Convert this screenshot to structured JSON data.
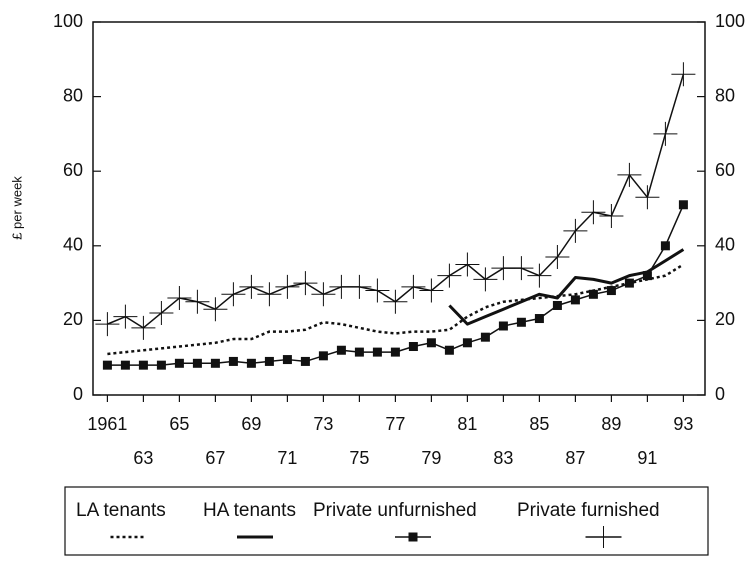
{
  "chart_data": {
    "type": "line",
    "y_label": "£ per week",
    "x": [
      1961,
      1962,
      1963,
      1964,
      1965,
      1966,
      1967,
      1968,
      1969,
      1970,
      1971,
      1972,
      1973,
      1974,
      1975,
      1976,
      1977,
      1978,
      1979,
      1980,
      1981,
      1982,
      1983,
      1984,
      1985,
      1986,
      1987,
      1988,
      1989,
      1990,
      1991,
      1992,
      1993
    ],
    "xlim": [
      1960.2,
      1994.2
    ],
    "xticks": [
      {
        "value": 1961,
        "label": "1961"
      },
      {
        "value": 1963,
        "label": "63"
      },
      {
        "value": 1965,
        "label": "65"
      },
      {
        "value": 1967,
        "label": "67"
      },
      {
        "value": 1969,
        "label": "69"
      },
      {
        "value": 1971,
        "label": "71"
      },
      {
        "value": 1973,
        "label": "73"
      },
      {
        "value": 1975,
        "label": "75"
      },
      {
        "value": 1977,
        "label": "77"
      },
      {
        "value": 1979,
        "label": "79"
      },
      {
        "value": 1981,
        "label": "81"
      },
      {
        "value": 1983,
        "label": "83"
      },
      {
        "value": 1985,
        "label": "85"
      },
      {
        "value": 1987,
        "label": "87"
      },
      {
        "value": 1989,
        "label": "89"
      },
      {
        "value": 1991,
        "label": "91"
      },
      {
        "value": 1993,
        "label": "93"
      }
    ],
    "ylim": [
      0,
      100
    ],
    "yticks": [
      0,
      20,
      40,
      60,
      80,
      100
    ],
    "y2lim": [
      0,
      100
    ],
    "y2ticks": [
      0,
      20,
      40,
      60,
      80,
      100
    ],
    "series": [
      {
        "name": "LA tenants",
        "color": "#111",
        "style": "dotted",
        "marker": "none",
        "values": [
          11,
          11.5,
          12,
          12.5,
          13,
          13.5,
          14,
          15,
          15,
          17,
          17,
          17.5,
          19.5,
          19,
          18,
          17,
          16.5,
          17,
          17,
          17.5,
          21,
          23.5,
          25,
          25.5,
          26,
          26.5,
          27,
          28,
          29,
          30,
          31,
          32,
          35
        ]
      },
      {
        "name": "HA tenants",
        "color": "#111",
        "style": "thick",
        "marker": "none",
        "values": [
          null,
          null,
          null,
          null,
          null,
          null,
          null,
          null,
          null,
          null,
          null,
          null,
          null,
          null,
          null,
          null,
          null,
          null,
          null,
          24,
          19,
          21,
          23,
          25,
          27,
          26,
          31.5,
          31,
          30,
          32,
          33,
          36,
          39
        ]
      },
      {
        "name": "Private unfurnished",
        "color": "#111",
        "style": "solid",
        "marker": "square",
        "values": [
          8,
          8,
          8,
          8,
          8.5,
          8.5,
          8.5,
          9,
          8.5,
          9,
          9.5,
          9,
          10.5,
          12,
          11.5,
          11.5,
          11.5,
          13,
          14,
          12,
          14,
          15.5,
          18.5,
          19.5,
          20.5,
          24,
          25.5,
          27,
          28,
          30,
          32,
          40,
          51
        ]
      },
      {
        "name": "Private furnished",
        "color": "#111",
        "style": "solid",
        "marker": "plus",
        "values": [
          19,
          21,
          18,
          22,
          26,
          25,
          23,
          27,
          29,
          27,
          29,
          30,
          27,
          29,
          29,
          28,
          25,
          29,
          28,
          32,
          35,
          31,
          34,
          34,
          32,
          37,
          44,
          49,
          48,
          59,
          53,
          70,
          86
        ]
      }
    ]
  }
}
